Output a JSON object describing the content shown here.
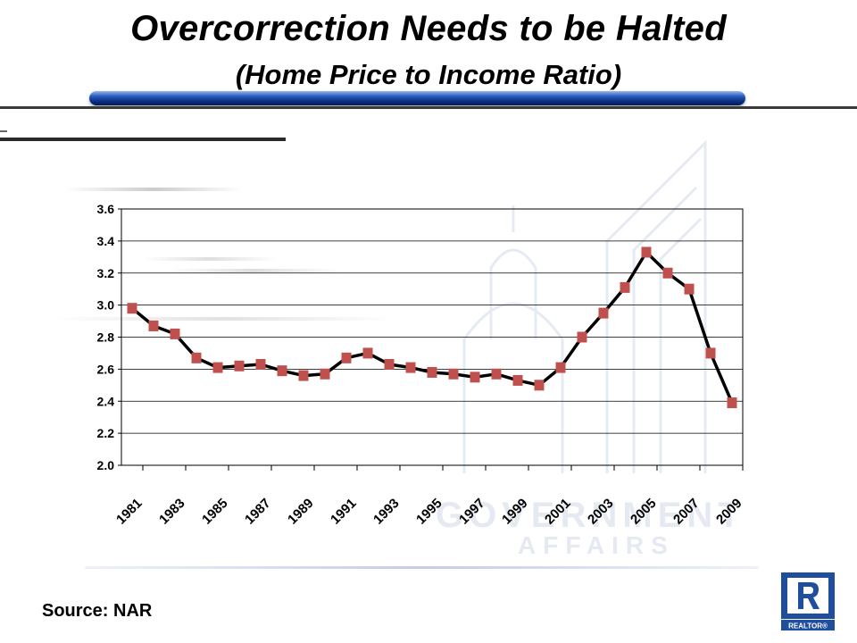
{
  "slide": {
    "title": "Overcorrection Needs to be Halted",
    "subtitle": "(Home Price to Income Ratio)",
    "source": "Source: NAR",
    "logo_text": "REALTOR®",
    "watermark_line1": "GOVERNMENT",
    "watermark_line2": "AFFAIRS"
  },
  "colors": {
    "line": "#000000",
    "marker": "#c0504d",
    "title_bar": "#0a2f86"
  },
  "chart_data": {
    "type": "line",
    "title": "",
    "xlabel": "",
    "ylabel": "",
    "ylim": [
      2.0,
      3.6
    ],
    "yticks": [
      "2.0",
      "2.2",
      "2.4",
      "2.6",
      "2.8",
      "3.0",
      "3.2",
      "3.4",
      "3.6"
    ],
    "xtick_labels": [
      "1981",
      "1983",
      "1985",
      "1987",
      "1989",
      "1991",
      "1993",
      "1995",
      "1997",
      "1999",
      "2001",
      "2003",
      "2005",
      "2007",
      "2009"
    ],
    "grid": true,
    "legend": "none",
    "x": [
      1981,
      1982,
      1983,
      1984,
      1985,
      1986,
      1987,
      1988,
      1989,
      1990,
      1991,
      1992,
      1993,
      1994,
      1995,
      1996,
      1997,
      1998,
      1999,
      2000,
      2001,
      2002,
      2003,
      2004,
      2005,
      2006,
      2007,
      2008,
      2009
    ],
    "series": [
      {
        "values": [
          2.98,
          2.87,
          2.82,
          2.67,
          2.61,
          2.62,
          2.63,
          2.59,
          2.56,
          2.57,
          2.67,
          2.7,
          2.63,
          2.61,
          2.58,
          2.57,
          2.55,
          2.57,
          2.53,
          2.5,
          2.61,
          2.8,
          2.95,
          3.11,
          3.33,
          3.2,
          3.1,
          2.7,
          2.39
        ]
      }
    ]
  }
}
